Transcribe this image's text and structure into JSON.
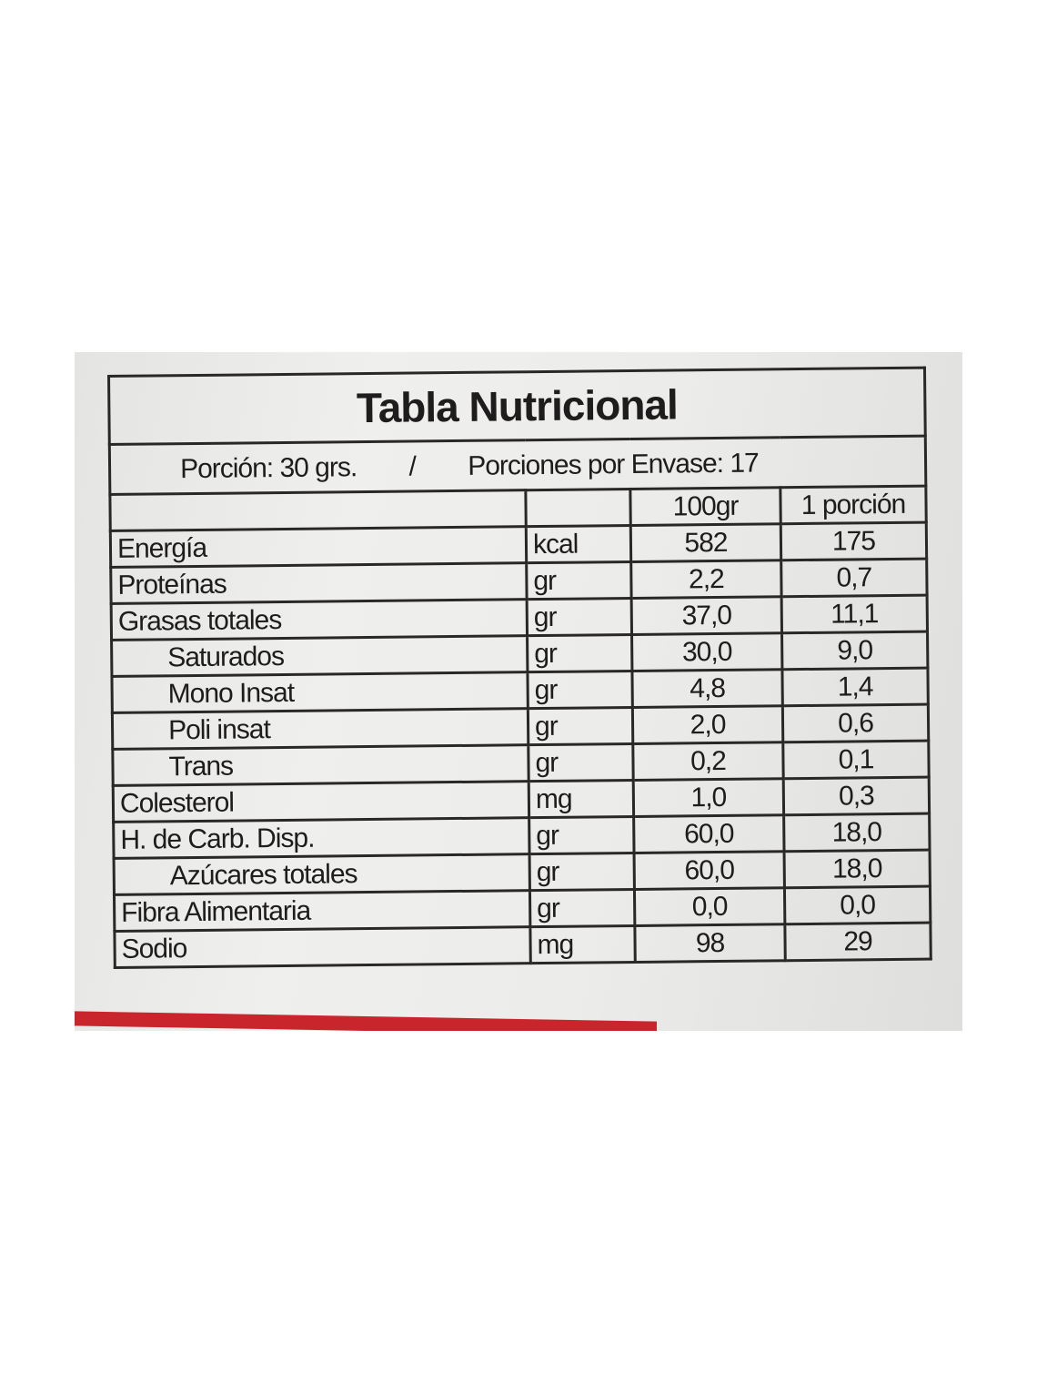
{
  "title": "Tabla Nutricional",
  "serving": {
    "portion": "Porción: 30 grs.",
    "separator": "/",
    "per_package": "Porciones por Envase: 17"
  },
  "columns": {
    "unit": "",
    "per100": "100gr",
    "perPortion": "1 porción"
  },
  "rows": [
    {
      "name": "Energía",
      "unit": "kcal",
      "per100": "582",
      "perPortion": "175",
      "indent": false
    },
    {
      "name": "Proteínas",
      "unit": "gr",
      "per100": "2,2",
      "perPortion": "0,7",
      "indent": false
    },
    {
      "name": "Grasas totales",
      "unit": "gr",
      "per100": "37,0",
      "perPortion": "11,1",
      "indent": false
    },
    {
      "name": "Saturados",
      "unit": "gr",
      "per100": "30,0",
      "perPortion": "9,0",
      "indent": true
    },
    {
      "name": "Mono Insat",
      "unit": "gr",
      "per100": "4,8",
      "perPortion": "1,4",
      "indent": true
    },
    {
      "name": "Poli insat",
      "unit": "gr",
      "per100": "2,0",
      "perPortion": "0,6",
      "indent": true
    },
    {
      "name": "Trans",
      "unit": "gr",
      "per100": "0,2",
      "perPortion": "0,1",
      "indent": true
    },
    {
      "name": "Colesterol",
      "unit": "mg",
      "per100": "1,0",
      "perPortion": "0,3",
      "indent": false
    },
    {
      "name": "H. de Carb. Disp.",
      "unit": "gr",
      "per100": "60,0",
      "perPortion": "18,0",
      "indent": false
    },
    {
      "name": "Azúcares totales",
      "unit": "gr",
      "per100": "60,0",
      "perPortion": "18,0",
      "indent": true
    },
    {
      "name": "Fibra Alimentaria",
      "unit": "gr",
      "per100": "0,0",
      "perPortion": "0,0",
      "indent": false
    },
    {
      "name": "Sodio",
      "unit": "mg",
      "per100": "98",
      "perPortion": "29",
      "indent": false
    }
  ],
  "colors": {
    "ink": "#1e1c1c",
    "background": "#ececea",
    "red_strip": "#c8262c"
  }
}
